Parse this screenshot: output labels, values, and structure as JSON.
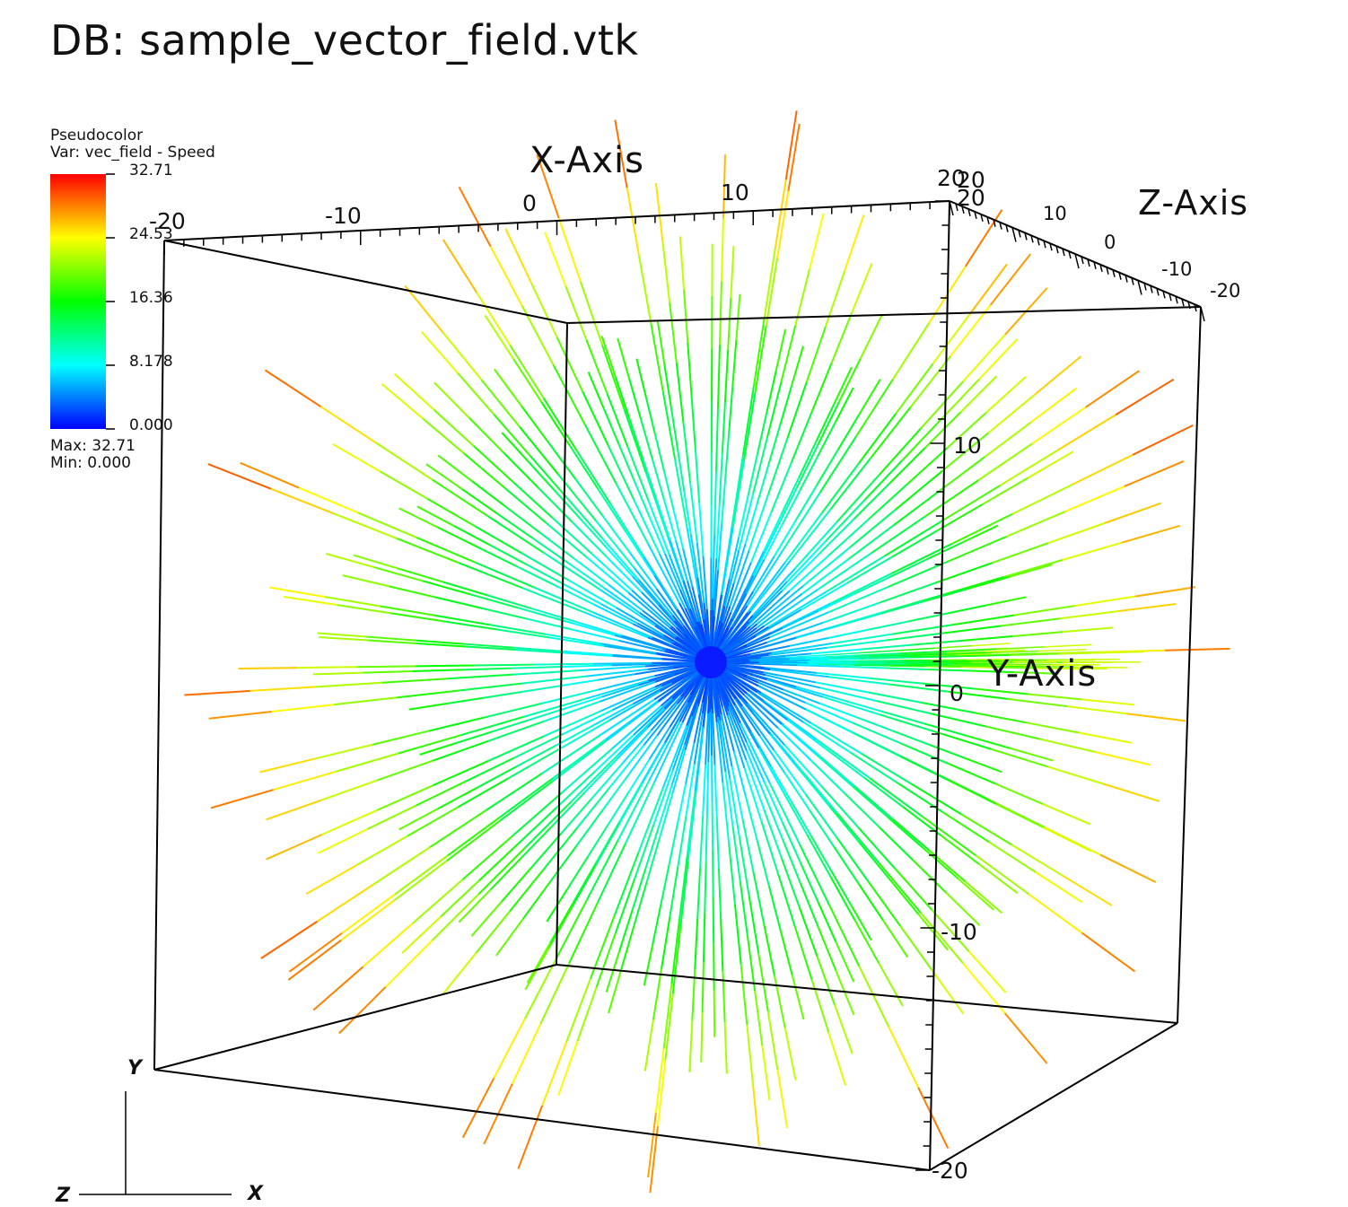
{
  "window": {
    "db_title": "DB: sample_vector_field.vtk"
  },
  "legend": {
    "plot_type": "Pseudocolor",
    "variable": "Var: vec_field - Speed",
    "ticks": [
      "32.71",
      "24.53",
      "16.36",
      "8.178",
      "0.000"
    ],
    "max_label": "Max:  32.71",
    "min_label": "Min:  0.000",
    "colormap": [
      "#0000ff",
      "#00ffff",
      "#00ff00",
      "#ffff00",
      "#ff0000"
    ]
  },
  "axes": {
    "x_title": "X-Axis",
    "y_title": "Y-Axis",
    "z_title": "Z-Axis",
    "x_ticks": [
      "-20",
      "-10",
      "0",
      "10",
      "20"
    ],
    "y_ticks": [
      "20",
      "10",
      "0",
      "-10",
      "-20"
    ],
    "z_ticks": [
      "20",
      "10",
      "0",
      "-10",
      "-20"
    ]
  },
  "triad": {
    "x": "X",
    "y": "Y",
    "z": "Z"
  },
  "colors": {
    "background": "#ffffff",
    "bounding_box": "#000000"
  }
}
